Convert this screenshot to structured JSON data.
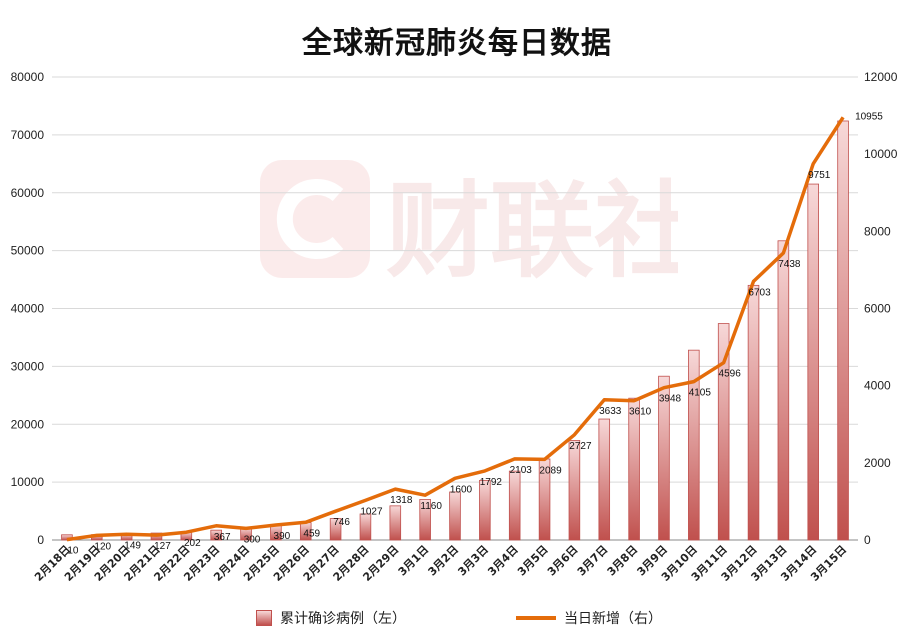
{
  "title": "全球新冠肺炎每日数据",
  "watermark": {
    "logo_text": "财联社"
  },
  "legend": {
    "bar_label": "累计确诊病例（左）",
    "line_label": "当日新增（右）"
  },
  "colors": {
    "bar": "#c0504d",
    "bar_light": "#f7d8d8",
    "line": "#e46c0a",
    "grid": "#d9d9d9"
  },
  "chart_data": {
    "type": "bar",
    "categories": [
      "2月18日",
      "2月19日",
      "2月20日",
      "2月21日",
      "2月22日",
      "2月23日",
      "2月24日",
      "2月25日",
      "2月26日",
      "2月27日",
      "2月28日",
      "2月29日",
      "3月1日",
      "3月2日",
      "3月3日",
      "3月4日",
      "3月5日",
      "3月6日",
      "3月7日",
      "3月8日",
      "3月9日",
      "3月10日",
      "3月11日",
      "3月12日",
      "3月13日",
      "3月14日",
      "3月15日"
    ],
    "series": [
      {
        "name": "累计确诊病例（左）",
        "type": "bar",
        "axis": "left",
        "values": [
          900,
          920,
          1050,
          1200,
          1350,
          1700,
          2100,
          2500,
          3000,
          3700,
          4500,
          5900,
          7000,
          8300,
          10300,
          11900,
          14000,
          17200,
          20900,
          24500,
          28300,
          32800,
          37400,
          44000,
          51700,
          61500,
          72400
        ]
      },
      {
        "name": "当日新增（右）",
        "type": "line",
        "axis": "right",
        "values": [
          10,
          120,
          149,
          127,
          202,
          367,
          300,
          390,
          459,
          746,
          1027,
          1318,
          1160,
          1600,
          1792,
          2103,
          2089,
          2727,
          3633,
          3610,
          3948,
          4105,
          4596,
          6703,
          7438,
          9751,
          10955
        ],
        "labels": [
          "10",
          "120",
          "149",
          "127",
          "202",
          "367",
          "300",
          "390",
          "459",
          "746",
          "1027",
          "1318",
          "1160",
          "1600",
          "1792",
          "2103",
          "2089",
          "2727",
          "3633",
          "3610",
          "3948",
          "4105",
          "4596",
          "6703",
          "7438",
          "9751",
          "10955"
        ]
      }
    ],
    "y_left": {
      "min": 0,
      "max": 80000,
      "ticks": [
        "0",
        "10000",
        "20000",
        "30000",
        "40000",
        "50000",
        "60000",
        "70000",
        "80000"
      ]
    },
    "y_right": {
      "min": 0,
      "max": 12000,
      "ticks": [
        "0",
        "2000",
        "4000",
        "6000",
        "8000",
        "10000",
        "12000"
      ]
    },
    "grid": true,
    "legend_position": "bottom"
  }
}
